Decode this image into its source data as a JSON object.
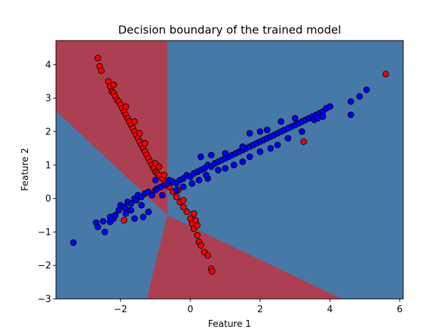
{
  "chart_data": {
    "type": "scatter",
    "title": "Decision boundary of the trained model",
    "xlabel": "Feature 1",
    "ylabel": "Feature 2",
    "xlim": [
      -3.85,
      6.1
    ],
    "ylim": [
      -3.0,
      4.72
    ],
    "xticks": [
      -2,
      0,
      2,
      4,
      6
    ],
    "yticks": [
      -3,
      -2,
      -1,
      0,
      1,
      2,
      3,
      4
    ],
    "grid": false,
    "legend": "none",
    "colors": {
      "red_region": "#ad3f52",
      "blue_region": "#4679a8",
      "red_points": "#ff0000",
      "blue_points": "#0000ff",
      "edge": "#000000"
    },
    "regions": [
      {
        "class": "red",
        "vertices": [
          [
            -3.85,
            4.72
          ],
          [
            -0.66,
            4.72
          ],
          [
            -0.66,
            -0.5
          ],
          [
            -3.85,
            2.62
          ]
        ]
      },
      {
        "class": "red",
        "vertices": [
          [
            -0.66,
            -0.5
          ],
          [
            4.35,
            -3.0
          ],
          [
            -1.25,
            -3.0
          ]
        ]
      }
    ],
    "series": [
      {
        "color": "red",
        "points": [
          [
            -2.65,
            4.2
          ],
          [
            -2.6,
            3.95
          ],
          [
            -2.55,
            3.82
          ],
          [
            -2.35,
            3.5
          ],
          [
            -2.3,
            3.35
          ],
          [
            -2.25,
            3.2
          ],
          [
            -2.2,
            3.15
          ],
          [
            -2.15,
            3.05
          ],
          [
            -2.1,
            2.95
          ],
          [
            -2.05,
            2.9
          ],
          [
            -2.0,
            2.8
          ],
          [
            -1.95,
            2.7
          ],
          [
            -1.9,
            2.6
          ],
          [
            -1.85,
            2.5
          ],
          [
            -1.8,
            2.4
          ],
          [
            -1.75,
            2.3
          ],
          [
            -1.7,
            2.2
          ],
          [
            -1.65,
            2.1
          ],
          [
            -1.6,
            2.0
          ],
          [
            -1.55,
            1.9
          ],
          [
            -1.5,
            1.8
          ],
          [
            -1.45,
            1.7
          ],
          [
            -1.4,
            1.6
          ],
          [
            -1.35,
            1.5
          ],
          [
            -1.3,
            1.4
          ],
          [
            -1.25,
            1.3
          ],
          [
            -1.2,
            1.2
          ],
          [
            -1.15,
            1.1
          ],
          [
            -1.1,
            1.0
          ],
          [
            -1.05,
            0.9
          ],
          [
            -1.0,
            0.8
          ],
          [
            -0.95,
            0.75
          ],
          [
            -0.9,
            0.7
          ],
          [
            -0.8,
            0.6
          ],
          [
            -0.7,
            0.5
          ],
          [
            -0.6,
            0.35
          ],
          [
            -0.5,
            0.2
          ],
          [
            -0.4,
            0.05
          ],
          [
            -0.3,
            -0.1
          ],
          [
            -0.2,
            -0.25
          ],
          [
            -0.1,
            -0.4
          ],
          [
            0.0,
            -0.6
          ],
          [
            0.05,
            -0.75
          ],
          [
            0.1,
            -0.9
          ],
          [
            0.2,
            -1.1
          ],
          [
            0.25,
            -1.3
          ],
          [
            0.3,
            -1.4
          ],
          [
            0.4,
            -1.6
          ],
          [
            0.5,
            -1.7
          ],
          [
            0.6,
            -2.1
          ],
          [
            0.62,
            -2.18
          ],
          [
            -1.9,
            -0.65
          ],
          [
            -2.2,
            3.4
          ],
          [
            -1.85,
            2.75
          ],
          [
            -1.6,
            2.3
          ],
          [
            -1.3,
            1.65
          ],
          [
            -1.0,
            1.05
          ],
          [
            -0.75,
            0.7
          ],
          [
            -0.55,
            0.5
          ],
          [
            -0.35,
            0.25
          ],
          [
            -0.2,
            -0.05
          ],
          [
            0.1,
            -0.45
          ],
          [
            0.2,
            -0.8
          ],
          [
            0.15,
            -0.65
          ],
          [
            5.6,
            3.72
          ],
          [
            3.25,
            1.7
          ],
          [
            -0.9,
            0.95
          ],
          [
            -1.45,
            1.95
          ]
        ]
      },
      {
        "color": "blue",
        "points": [
          [
            -3.35,
            -1.32
          ],
          [
            -2.7,
            -0.72
          ],
          [
            -2.65,
            -0.85
          ],
          [
            -2.5,
            -0.68
          ],
          [
            -2.45,
            -1.0
          ],
          [
            -2.3,
            -0.7
          ],
          [
            -2.2,
            -0.6
          ],
          [
            -2.15,
            -0.5
          ],
          [
            -2.05,
            -0.35
          ],
          [
            -2.0,
            -0.2
          ],
          [
            -1.9,
            -0.25
          ],
          [
            -1.85,
            -0.3
          ],
          [
            -1.8,
            -0.1
          ],
          [
            -1.7,
            -0.15
          ],
          [
            -1.6,
            0.0
          ],
          [
            -1.55,
            -0.05
          ],
          [
            -1.5,
            0.1
          ],
          [
            -1.4,
            0.05
          ],
          [
            -1.3,
            0.15
          ],
          [
            -1.2,
            0.2
          ],
          [
            -1.1,
            0.1
          ],
          [
            -1.0,
            0.25
          ],
          [
            -0.95,
            0.3
          ],
          [
            -0.85,
            0.35
          ],
          [
            -0.75,
            0.4
          ],
          [
            -0.65,
            0.45
          ],
          [
            -0.6,
            0.55
          ],
          [
            -0.5,
            0.5
          ],
          [
            -0.4,
            0.45
          ],
          [
            -0.3,
            0.55
          ],
          [
            -0.2,
            0.6
          ],
          [
            -0.1,
            0.7
          ],
          [
            0.0,
            0.65
          ],
          [
            0.1,
            0.75
          ],
          [
            0.2,
            0.8
          ],
          [
            0.3,
            0.85
          ],
          [
            0.4,
            0.9
          ],
          [
            0.5,
            1.0
          ],
          [
            0.6,
            0.95
          ],
          [
            0.7,
            1.05
          ],
          [
            0.8,
            1.1
          ],
          [
            0.9,
            1.15
          ],
          [
            1.0,
            1.2
          ],
          [
            1.1,
            1.25
          ],
          [
            1.2,
            1.3
          ],
          [
            1.3,
            1.35
          ],
          [
            1.4,
            1.4
          ],
          [
            1.5,
            1.45
          ],
          [
            1.6,
            1.5
          ],
          [
            1.7,
            1.55
          ],
          [
            1.8,
            1.6
          ],
          [
            1.9,
            1.65
          ],
          [
            2.0,
            1.7
          ],
          [
            2.1,
            1.75
          ],
          [
            2.2,
            1.8
          ],
          [
            2.3,
            1.85
          ],
          [
            2.4,
            1.9
          ],
          [
            2.5,
            1.95
          ],
          [
            2.6,
            2.0
          ],
          [
            2.7,
            2.05
          ],
          [
            2.8,
            2.1
          ],
          [
            2.9,
            2.15
          ],
          [
            3.0,
            2.2
          ],
          [
            3.1,
            2.25
          ],
          [
            3.2,
            2.3
          ],
          [
            3.3,
            2.35
          ],
          [
            3.4,
            2.4
          ],
          [
            3.5,
            2.45
          ],
          [
            3.6,
            2.5
          ],
          [
            3.7,
            2.55
          ],
          [
            3.8,
            2.6
          ],
          [
            3.9,
            2.7
          ],
          [
            4.0,
            2.75
          ],
          [
            3.55,
            2.35
          ],
          [
            3.65,
            2.4
          ],
          [
            3.8,
            2.45
          ],
          [
            4.6,
            2.9
          ],
          [
            4.85,
            3.05
          ],
          [
            5.05,
            3.25
          ],
          [
            4.6,
            2.5
          ],
          [
            0.3,
            1.25
          ],
          [
            0.6,
            1.3
          ],
          [
            1.0,
            1.35
          ],
          [
            1.5,
            1.55
          ],
          [
            2.0,
            2.0
          ],
          [
            2.2,
            2.05
          ],
          [
            1.7,
            1.95
          ],
          [
            0.5,
            0.6
          ],
          [
            1.0,
            0.9
          ],
          [
            1.5,
            1.1
          ],
          [
            2.0,
            1.4
          ],
          [
            2.5,
            1.6
          ],
          [
            -0.4,
            0.25
          ],
          [
            -0.8,
            0.1
          ],
          [
            -1.4,
            -0.2
          ],
          [
            -1.7,
            -0.35
          ],
          [
            -1.35,
            -0.55
          ],
          [
            -1.2,
            -0.4
          ],
          [
            -1.6,
            -0.6
          ],
          [
            -1.85,
            -0.45
          ],
          [
            -2.3,
            -0.55
          ],
          [
            -0.2,
            0.35
          ],
          [
            0.05,
            0.45
          ],
          [
            0.25,
            0.55
          ],
          [
            0.45,
            0.7
          ],
          [
            0.8,
            0.85
          ],
          [
            1.25,
            1.0
          ],
          [
            1.7,
            1.25
          ],
          [
            2.3,
            1.5
          ],
          [
            2.8,
            1.8
          ],
          [
            3.2,
            2.0
          ],
          [
            3.0,
            2.4
          ],
          [
            2.6,
            2.3
          ],
          [
            -1.0,
            0.55
          ]
        ]
      }
    ]
  }
}
